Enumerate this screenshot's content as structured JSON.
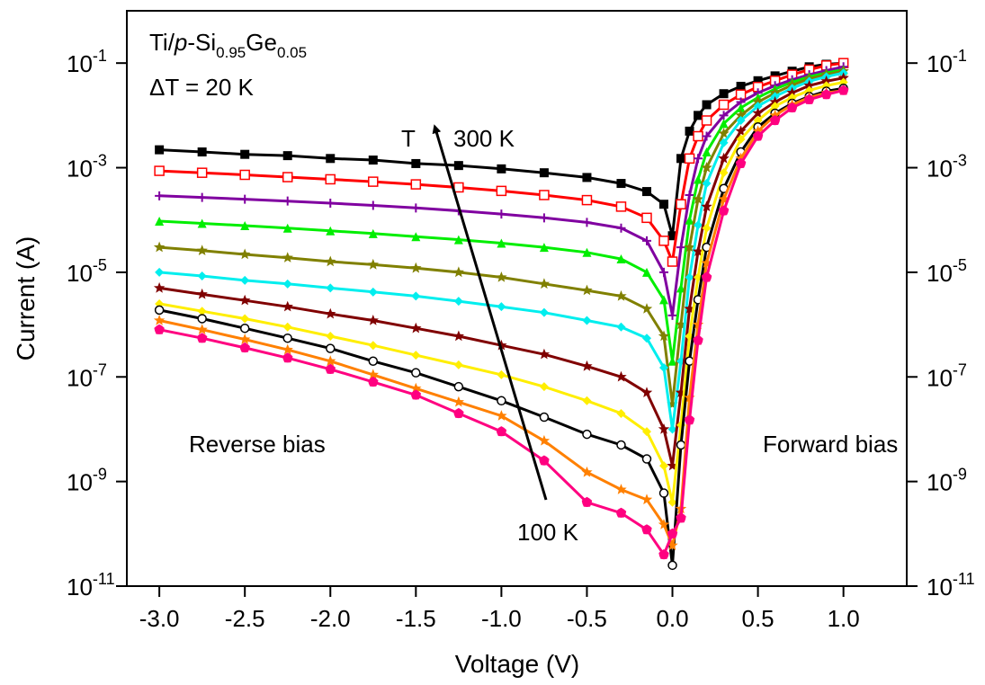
{
  "chart_data": {
    "type": "line",
    "xlabel": "Voltage (V)",
    "ylabel": "Current (A)",
    "sample_label": [
      "Ti/",
      "p",
      "-Si",
      "0.95",
      "Ge",
      "0.05"
    ],
    "annotations": {
      "delta_t": "ΔT = 20 K",
      "t_symbol": "T",
      "high_t": "300 K",
      "low_t": "100 K",
      "reverse": "Reverse bias",
      "forward": "Forward bias"
    },
    "yscale": "log",
    "xlim": [
      -3.19,
      1.37
    ],
    "ylim": [
      1e-11,
      1
    ],
    "xticks": [
      {
        "value": -3,
        "label": "-3.0"
      },
      -2.5,
      {
        "value": -2,
        "label": "-2.0"
      },
      -1.5,
      {
        "value": -1,
        "label": "-1.0"
      },
      -0.5,
      {
        "value": 0,
        "label": "0.0"
      },
      0.5,
      {
        "value": 1,
        "label": "1.0"
      }
    ],
    "yticks": [
      {
        "value": 1e-11,
        "label": "10-11"
      },
      {
        "value": 1e-09,
        "label": "10-9"
      },
      {
        "value": 1e-07,
        "label": "10-7"
      },
      {
        "value": 1e-05,
        "label": "10-5"
      },
      {
        "value": 0.001,
        "label": "10-3"
      },
      {
        "value": 0.1,
        "label": "10-1"
      }
    ],
    "right_axis_labels": true,
    "x": [
      -3.0,
      -2.75,
      -2.5,
      -2.25,
      -2.0,
      -1.75,
      -1.5,
      -1.25,
      -1.0,
      -0.75,
      -0.5,
      -0.3,
      -0.15,
      -0.05,
      0,
      0.05,
      0.1,
      0.15,
      0.2,
      0.3,
      0.4,
      0.5,
      0.6,
      0.7,
      0.8,
      0.9,
      1.0
    ],
    "series": [
      {
        "color": "#000000",
        "marker": "square",
        "values": [
          0.0022,
          0.002,
          0.0018,
          0.0017,
          0.0015,
          0.0014,
          0.0012,
          0.0011,
          0.00095,
          0.0008,
          0.00065,
          0.0005,
          0.00035,
          0.0002,
          5e-05,
          0.0015,
          0.005,
          0.01,
          0.016,
          0.026,
          0.036,
          0.046,
          0.057,
          0.07,
          0.085,
          0.095,
          0.1
        ]
      },
      {
        "color": "#ff0000",
        "marker": "open-square",
        "values": [
          0.00087,
          0.0008,
          0.00073,
          0.00066,
          0.0006,
          0.00054,
          0.00048,
          0.00042,
          0.00036,
          0.0003,
          0.00024,
          0.00018,
          0.00011,
          4e-05,
          1.6e-05,
          0.0002,
          0.0015,
          0.004,
          0.008,
          0.016,
          0.025,
          0.035,
          0.046,
          0.06,
          0.075,
          0.09,
          0.1
        ]
      },
      {
        "color": "#8000a0",
        "marker": "plus",
        "values": [
          0.00029,
          0.00027,
          0.00025,
          0.00023,
          0.00021,
          0.00019,
          0.00017,
          0.00015,
          0.00013,
          0.00011,
          9e-05,
          7e-05,
          4e-05,
          1e-05,
          1.5e-06,
          3e-05,
          0.0003,
          0.0015,
          0.004,
          0.01,
          0.018,
          0.027,
          0.037,
          0.048,
          0.06,
          0.072,
          0.085
        ]
      },
      {
        "color": "#00ee00",
        "marker": "triangle",
        "values": [
          9.5e-05,
          8.6e-05,
          7.8e-05,
          7e-05,
          6.2e-05,
          5.5e-05,
          4.8e-05,
          4.2e-05,
          3.6e-05,
          3e-05,
          2.4e-05,
          1.8e-05,
          1e-05,
          3e-06,
          2e-07,
          5e-06,
          0.0001,
          0.0006,
          0.002,
          0.007,
          0.014,
          0.022,
          0.032,
          0.043,
          0.055,
          0.065,
          0.075
        ]
      },
      {
        "color": "#808000",
        "marker": "star",
        "values": [
          3e-05,
          2.6e-05,
          2.2e-05,
          1.9e-05,
          1.6e-05,
          1.4e-05,
          1.2e-05,
          1e-05,
          8e-06,
          6e-06,
          4.5e-06,
          3.5e-06,
          2e-06,
          6e-07,
          3e-08,
          1e-06,
          3e-05,
          0.00025,
          0.001,
          0.0045,
          0.01,
          0.018,
          0.027,
          0.038,
          0.05,
          0.06,
          0.07
        ]
      },
      {
        "color": "#00eeee",
        "marker": "diamond",
        "values": [
          1e-05,
          8.5e-06,
          7e-06,
          6e-06,
          5e-06,
          4.2e-06,
          3.5e-06,
          2.8e-06,
          2.2e-06,
          1.7e-06,
          1.2e-06,
          9e-07,
          5.5e-07,
          1.5e-07,
          1e-08,
          2e-07,
          8e-06,
          8e-05,
          0.0005,
          0.003,
          0.008,
          0.015,
          0.023,
          0.033,
          0.045,
          0.055,
          0.065
        ]
      },
      {
        "color": "#800000",
        "marker": "star",
        "values": [
          5e-06,
          3.8e-06,
          2.9e-06,
          2.2e-06,
          1.6e-06,
          1.2e-06,
          8.5e-07,
          6e-07,
          4e-07,
          2.7e-07,
          1.6e-07,
          1e-07,
          5e-08,
          1e-08,
          2e-09,
          5e-08,
          2e-06,
          2.5e-05,
          0.00018,
          0.0015,
          0.005,
          0.011,
          0.018,
          0.027,
          0.037,
          0.045,
          0.052
        ]
      },
      {
        "color": "#ffee00",
        "marker": "diamond",
        "values": [
          2.5e-06,
          1.8e-06,
          1.3e-06,
          9e-07,
          6e-07,
          4e-07,
          2.6e-07,
          1.7e-07,
          1.1e-07,
          6.5e-08,
          3.5e-08,
          2e-08,
          9e-09,
          2e-09,
          4e-10,
          1.2e-08,
          6e-07,
          8e-06,
          7e-05,
          0.0008,
          0.0035,
          0.008,
          0.015,
          0.022,
          0.03,
          0.037,
          0.043
        ]
      },
      {
        "color": "#000000",
        "marker": "open-circle",
        "values": [
          1.9e-06,
          1.3e-06,
          8.5e-07,
          5.5e-07,
          3.5e-07,
          2e-07,
          1.2e-07,
          6.5e-08,
          3.5e-08,
          1.7e-08,
          8e-09,
          5e-09,
          2.7e-09,
          6e-10,
          2.5e-11,
          5e-09,
          2e-07,
          3e-06,
          3e-05,
          0.0004,
          0.002,
          0.006,
          0.011,
          0.017,
          0.023,
          0.029,
          0.033
        ]
      },
      {
        "color": "#ff8000",
        "marker": "star",
        "values": [
          1.2e-06,
          8e-07,
          5.2e-07,
          3.3e-07,
          2e-07,
          1.1e-07,
          6e-08,
          3.3e-08,
          1.8e-08,
          6e-09,
          1.5e-09,
          7e-10,
          4.5e-10,
          1.5e-10,
          6e-11,
          3e-10,
          4e-08,
          1e-06,
          1.5e-05,
          0.00025,
          0.0015,
          0.005,
          0.01,
          0.016,
          0.022,
          0.027,
          0.03
        ]
      },
      {
        "color": "#ff0080",
        "marker": "pentagon",
        "values": [
          8e-07,
          5.5e-07,
          3.6e-07,
          2.3e-07,
          1.4e-07,
          8e-08,
          4.5e-08,
          2e-08,
          9e-09,
          2.5e-09,
          4e-10,
          2.5e-10,
          1.2e-10,
          4e-11,
          1e-10,
          2e-10,
          1.5e-08,
          5e-07,
          8e-06,
          0.00015,
          0.0012,
          0.004,
          0.008,
          0.014,
          0.02,
          0.025,
          0.03
        ]
      }
    ]
  }
}
